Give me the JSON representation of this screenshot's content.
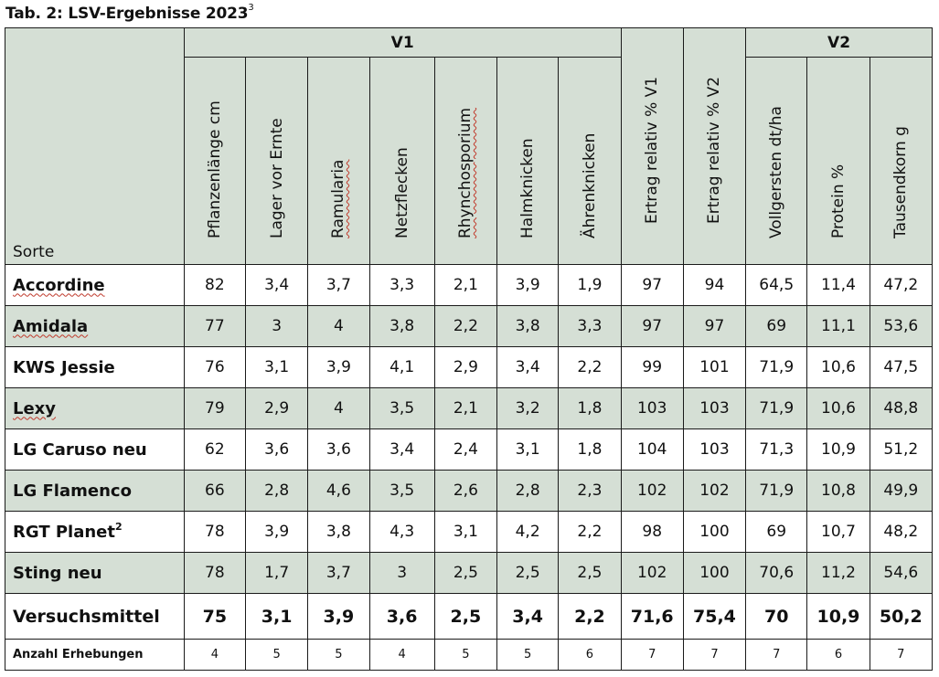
{
  "title": {
    "text": "Tab. 2: LSV-Ergebnisse 2023",
    "sup": "3"
  },
  "header": {
    "sorte": "Sorte",
    "group_v1": "V1",
    "group_v2": "V2",
    "columns": [
      "Pflanzenlänge cm",
      "Lager vor Ernte",
      "Ramularia",
      "Netzflecken",
      "Rhynchosporium",
      "Halmknicken",
      "Ährenknicken",
      "Ertrag relativ % V1",
      "Ertrag relativ % V2",
      "Vollgersten dt/ha",
      "Protein %",
      "Tausendkorn g"
    ]
  },
  "rows": [
    {
      "name": "Accordine",
      "sup": "",
      "values": [
        "82",
        "3,4",
        "3,7",
        "3,3",
        "2,1",
        "3,9",
        "1,9",
        "97",
        "94",
        "64,5",
        "11,4",
        "47,2"
      ]
    },
    {
      "name": "Amidala",
      "sup": "",
      "values": [
        "77",
        "3",
        "4",
        "3,8",
        "2,2",
        "3,8",
        "3,3",
        "97",
        "97",
        "69",
        "11,1",
        "53,6"
      ]
    },
    {
      "name": "KWS Jessie",
      "sup": "",
      "values": [
        "76",
        "3,1",
        "3,9",
        "4,1",
        "2,9",
        "3,4",
        "2,2",
        "99",
        "101",
        "71,9",
        "10,6",
        "47,5"
      ]
    },
    {
      "name": "Lexy",
      "sup": "",
      "values": [
        "79",
        "2,9",
        "4",
        "3,5",
        "2,1",
        "3,2",
        "1,8",
        "103",
        "103",
        "71,9",
        "10,6",
        "48,8"
      ]
    },
    {
      "name": "LG Caruso neu",
      "sup": "",
      "values": [
        "62",
        "3,6",
        "3,6",
        "3,4",
        "2,4",
        "3,1",
        "1,8",
        "104",
        "103",
        "71,3",
        "10,9",
        "51,2"
      ]
    },
    {
      "name": "LG Flamenco",
      "sup": "",
      "values": [
        "66",
        "2,8",
        "4,6",
        "3,5",
        "2,6",
        "2,8",
        "2,3",
        "102",
        "102",
        "71,9",
        "10,8",
        "49,9"
      ]
    },
    {
      "name": "RGT Planet",
      "sup": "2",
      "values": [
        "78",
        "3,9",
        "3,8",
        "4,3",
        "3,1",
        "4,2",
        "2,2",
        "98",
        "100",
        "69",
        "10,7",
        "48,2"
      ]
    },
    {
      "name": "Sting neu",
      "sup": "",
      "values": [
        "78",
        "1,7",
        "3,7",
        "3",
        "2,5",
        "2,5",
        "2,5",
        "102",
        "100",
        "70,6",
        "11,2",
        "54,6"
      ]
    }
  ],
  "mean_row": {
    "name": "Versuchsmittel",
    "values": [
      "75",
      "3,1",
      "3,9",
      "3,6",
      "2,5",
      "3,4",
      "2,2",
      "71,6",
      "75,4",
      "70",
      "10,9",
      "50,2"
    ]
  },
  "count_row": {
    "name": "Anzahl Erhebungen",
    "values": [
      "4",
      "5",
      "5",
      "4",
      "5",
      "5",
      "6",
      "7",
      "7",
      "7",
      "6",
      "7"
    ]
  },
  "colors": {
    "shade": "#d5dfd5",
    "border": "#1a1a1a",
    "spellcheck": "#c0392b"
  }
}
